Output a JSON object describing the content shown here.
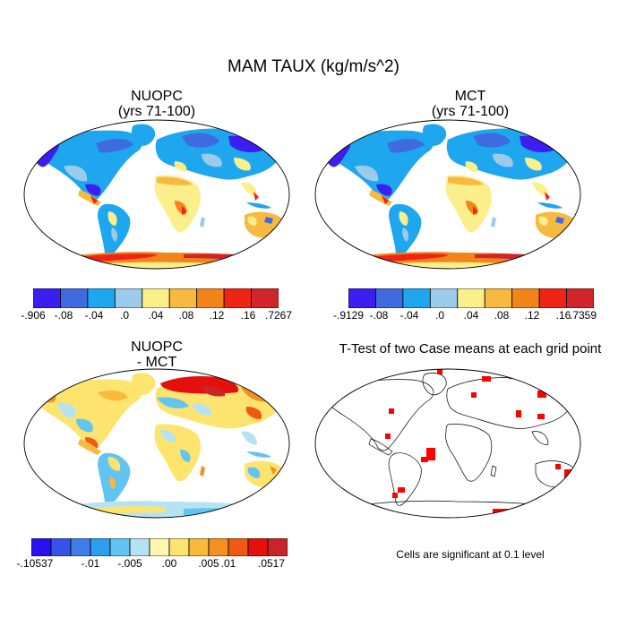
{
  "title": "MAM TAUX (kg/m/s^2)",
  "panels": [
    {
      "title": [
        "NUOPC",
        "(yrs 71-100)"
      ]
    },
    {
      "title": [
        "MCT",
        "(yrs 71-100)"
      ]
    },
    {
      "title": [
        "NUOPC",
        "- MCT"
      ]
    },
    {
      "title": [
        "T-Test of two Case means at each grid point"
      ]
    }
  ],
  "colorbars": [
    {
      "colors": [
        "#3a1ff0",
        "#3f6ae0",
        "#1ea6ee",
        "#9ccbea",
        "#fbef8c",
        "#f7b940",
        "#f3841a",
        "#ee2414",
        "#d0262a"
      ],
      "labels": [
        "-.906",
        "-.08",
        "-.04",
        ".0",
        ".04",
        ".08",
        ".12",
        ".16",
        ".7267"
      ]
    },
    {
      "colors": [
        "#3a1ff0",
        "#3f6ae0",
        "#1ea6ee",
        "#9ccbea",
        "#fbef8c",
        "#f7b940",
        "#f3841a",
        "#ee2414",
        "#d0262a"
      ],
      "labels": [
        "-.9129",
        "-.08",
        "-.04",
        ".0",
        ".04",
        ".08",
        ".12",
        ".16",
        ".7359"
      ]
    },
    {
      "colors": [
        "#2a10f0",
        "#3553e6",
        "#3f7ee8",
        "#2c9ef0",
        "#62c4f0",
        "#b6e3f3",
        "#fff7b0",
        "#fde46e",
        "#f9b93a",
        "#f59020",
        "#ee5a14",
        "#e4100e",
        "#c8242a"
      ],
      "labels": [
        "-.10537",
        "-.01",
        "-.005",
        ".00",
        ".005",
        ".01",
        ".0517"
      ]
    }
  ],
  "significance_note": "Cells are significant at 0.1 level",
  "legend_colors": {
    "significant": "#ff0000",
    "ocean": "#ffffff",
    "coast": "#000000"
  }
}
